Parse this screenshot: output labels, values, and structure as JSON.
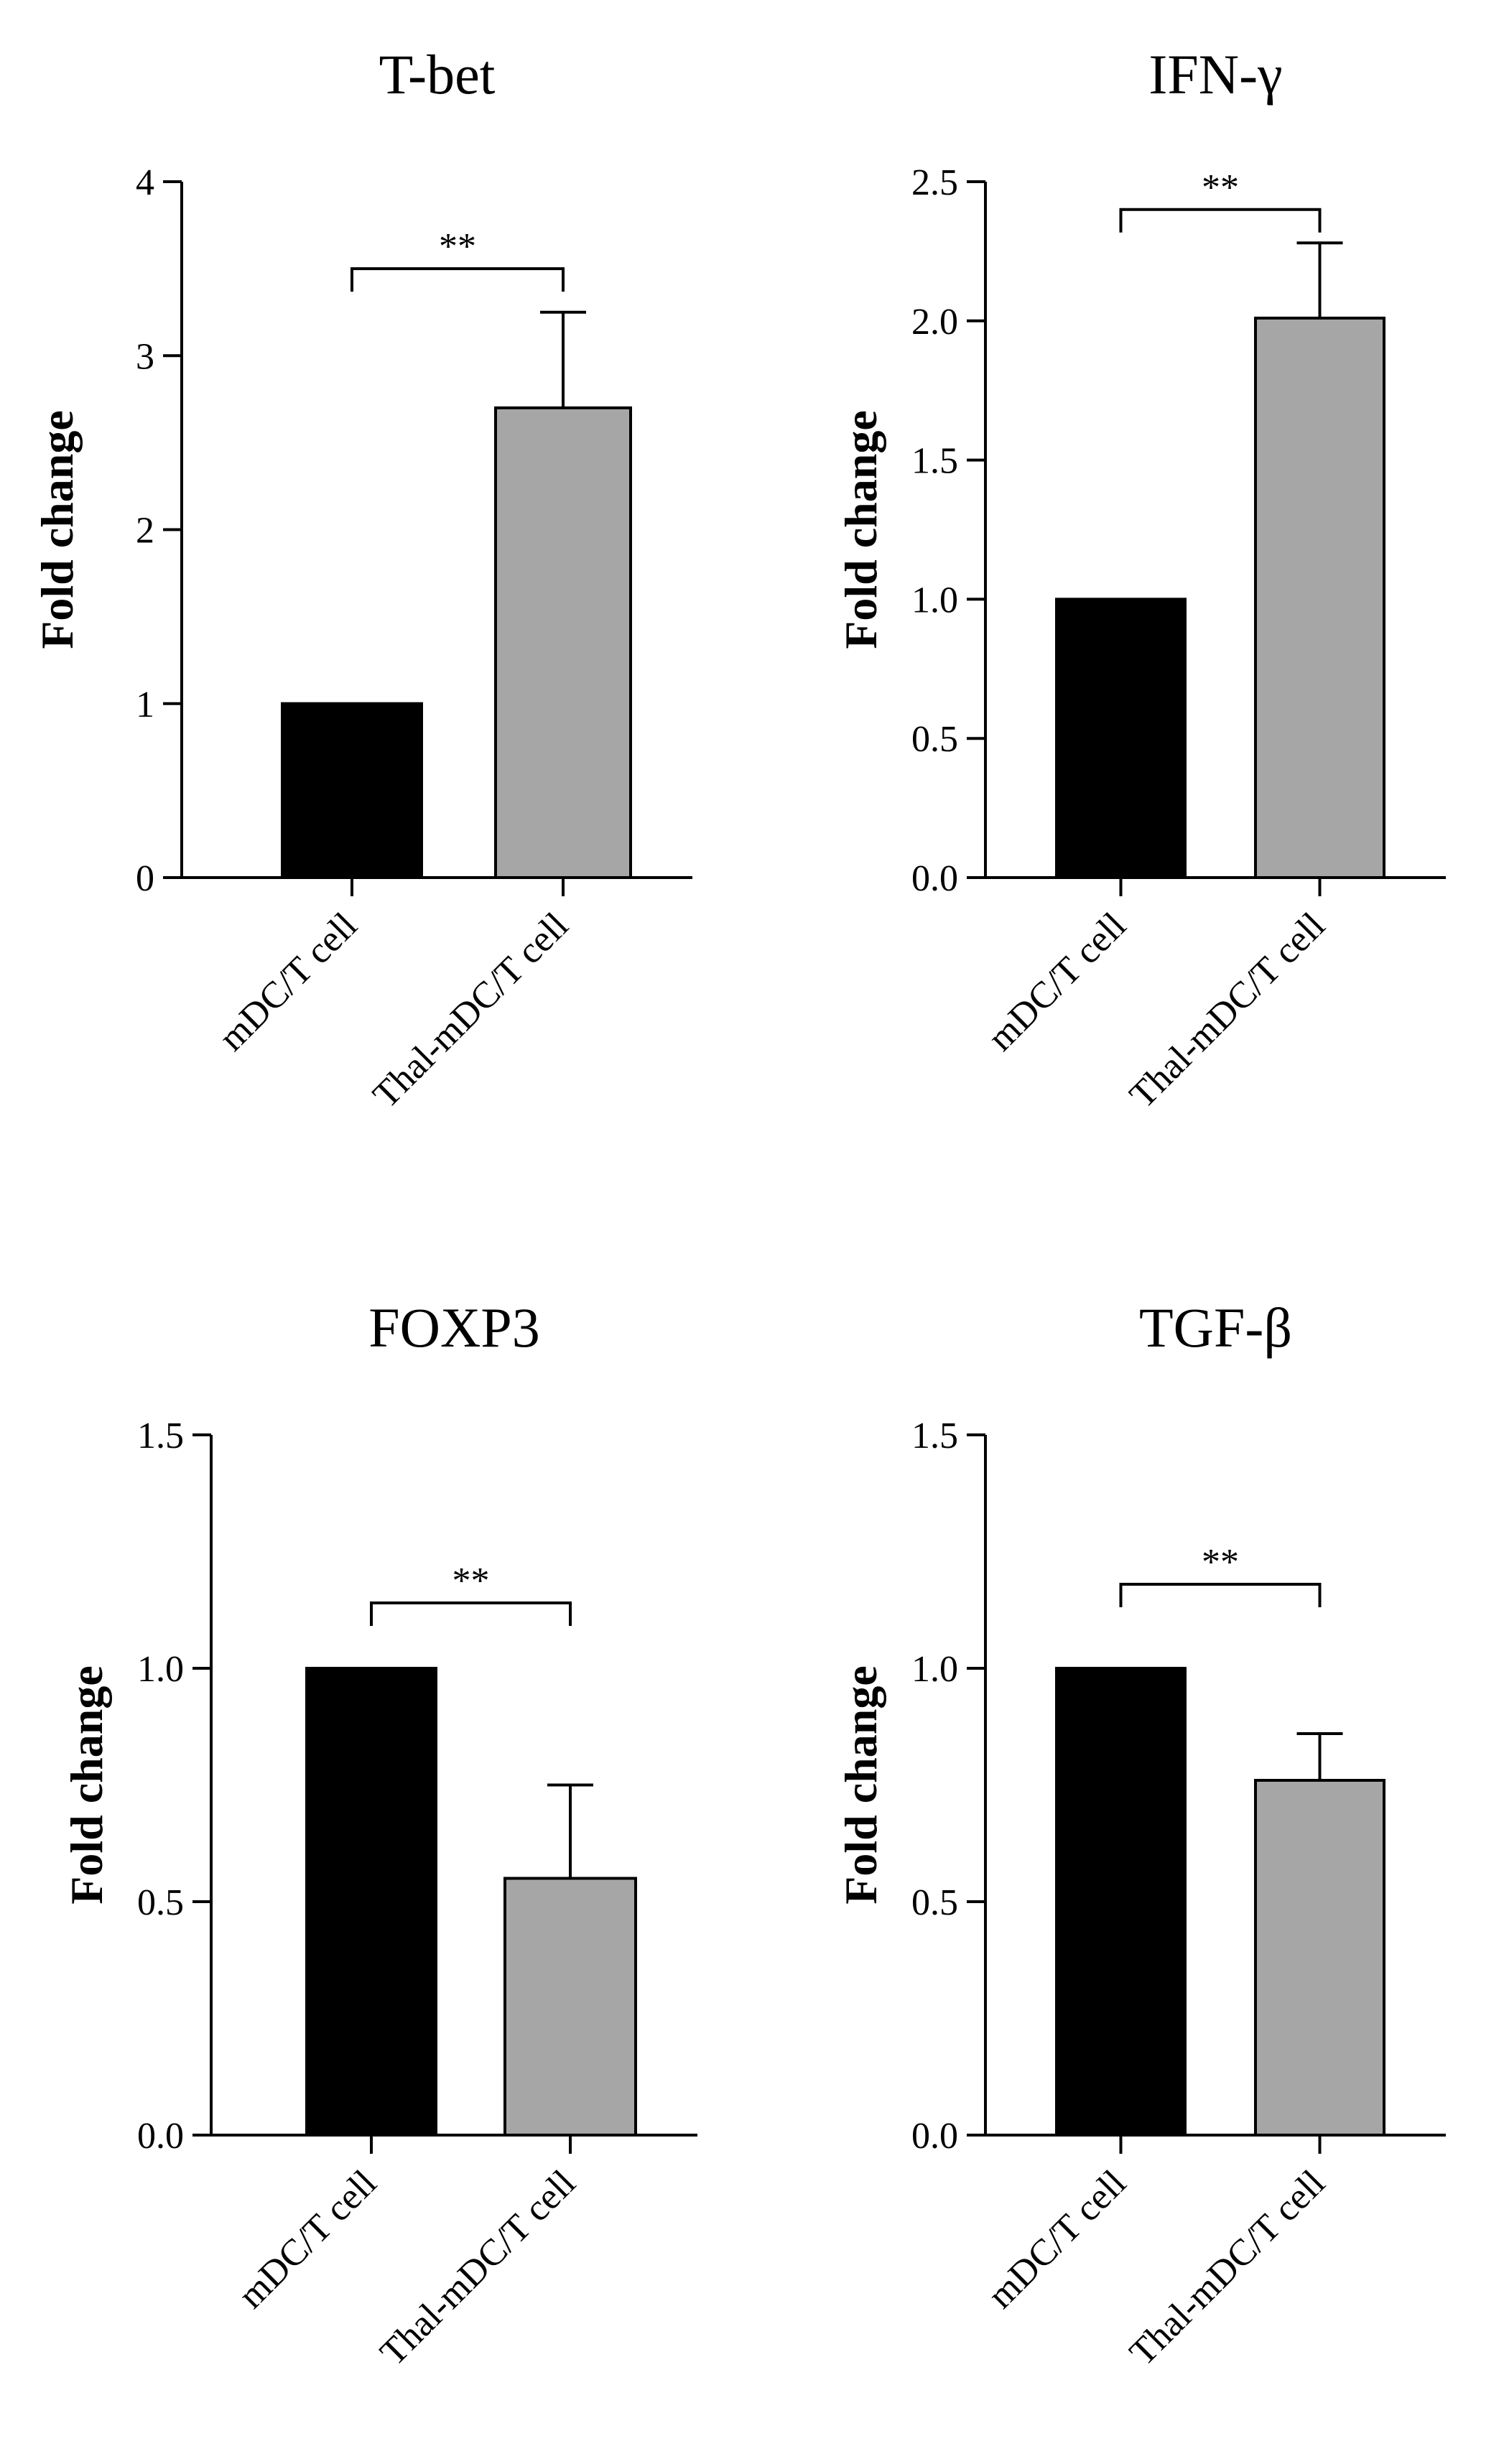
{
  "chart_data": [
    {
      "type": "bar",
      "title": "T-bet",
      "ylabel": "Fold change",
      "categories": [
        "mDC/T cell",
        "Thal-mDC/T cell"
      ],
      "values": [
        1.0,
        2.7
      ],
      "error": [
        0,
        0.55
      ],
      "ylim": [
        0,
        4
      ],
      "yticks": [
        "0",
        "1",
        "2",
        "3",
        "4"
      ],
      "colors": [
        "#000000",
        "#a6a6a6"
      ],
      "significance": {
        "label": "**",
        "value": 3.5
      }
    },
    {
      "type": "bar",
      "title": "IFN-γ",
      "ylabel": "Fold change",
      "categories": [
        "mDC/T cell",
        "Thal-mDC/T cell"
      ],
      "values": [
        1.0,
        2.01
      ],
      "error": [
        0,
        0.27
      ],
      "ylim": [
        0,
        2.5
      ],
      "yticks": [
        "0.0",
        "0.5",
        "1.0",
        "1.5",
        "2.0",
        "2.5"
      ],
      "colors": [
        "#000000",
        "#a6a6a6"
      ],
      "significance": {
        "label": "**",
        "value": 2.4
      }
    },
    {
      "type": "bar",
      "title": "FOXP3",
      "ylabel": "Fold change",
      "categories": [
        "mDC/T cell",
        "Thal-mDC/T cell"
      ],
      "values": [
        1.0,
        0.55
      ],
      "error": [
        0,
        0.2
      ],
      "ylim": [
        0,
        1.5
      ],
      "yticks": [
        "0.0",
        "0.5",
        "1.0",
        "1.5"
      ],
      "colors": [
        "#000000",
        "#a6a6a6"
      ],
      "significance": {
        "label": "**",
        "value": 1.14
      }
    },
    {
      "type": "bar",
      "title": "TGF-β",
      "ylabel": "Fold change",
      "categories": [
        "mDC/T cell",
        "Thal-mDC/T cell"
      ],
      "values": [
        1.0,
        0.76
      ],
      "error": [
        0,
        0.1
      ],
      "ylim": [
        0,
        1.5
      ],
      "yticks": [
        "0.0",
        "0.5",
        "1.0",
        "1.5"
      ],
      "colors": [
        "#000000",
        "#a6a6a6"
      ],
      "significance": {
        "label": "**",
        "value": 1.18
      }
    }
  ]
}
